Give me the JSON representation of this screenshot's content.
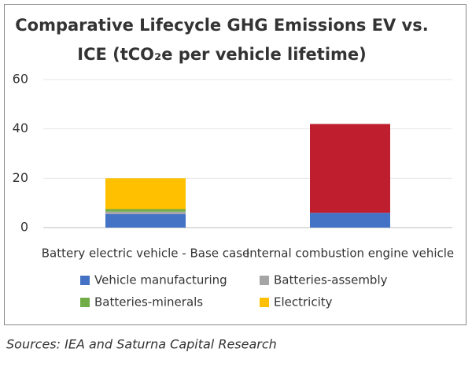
{
  "chart_data": {
    "type": "stacked_bar",
    "title": [
      "Comparative Lifecycle GHG Emissions EV vs.",
      "ICE  (tCO₂e per vehicle lifetime)"
    ],
    "categories": [
      "Battery electric vehicle - Base case",
      "Internal combustion engine vehicle"
    ],
    "series": [
      {
        "name": "Vehicle manufacturing",
        "color": "#4472c4",
        "values": [
          5.5,
          6
        ]
      },
      {
        "name": "Batteries-assembly",
        "color": "#a5a5a5",
        "values": [
          1,
          null
        ]
      },
      {
        "name": "Batteries-minerals",
        "color": "#70ad47",
        "values": [
          1,
          null
        ]
      },
      {
        "name": "Electricity",
        "color": "#ffc000",
        "values": [
          12.5,
          null
        ]
      },
      {
        "color": "#be1e2d",
        "values": [
          null,
          36
        ]
      }
    ],
    "ylim": [
      0,
      60
    ],
    "yticks": [
      0,
      20,
      40,
      60
    ],
    "grid": true,
    "source": "Sources: IEA and Saturna Capital Research"
  }
}
